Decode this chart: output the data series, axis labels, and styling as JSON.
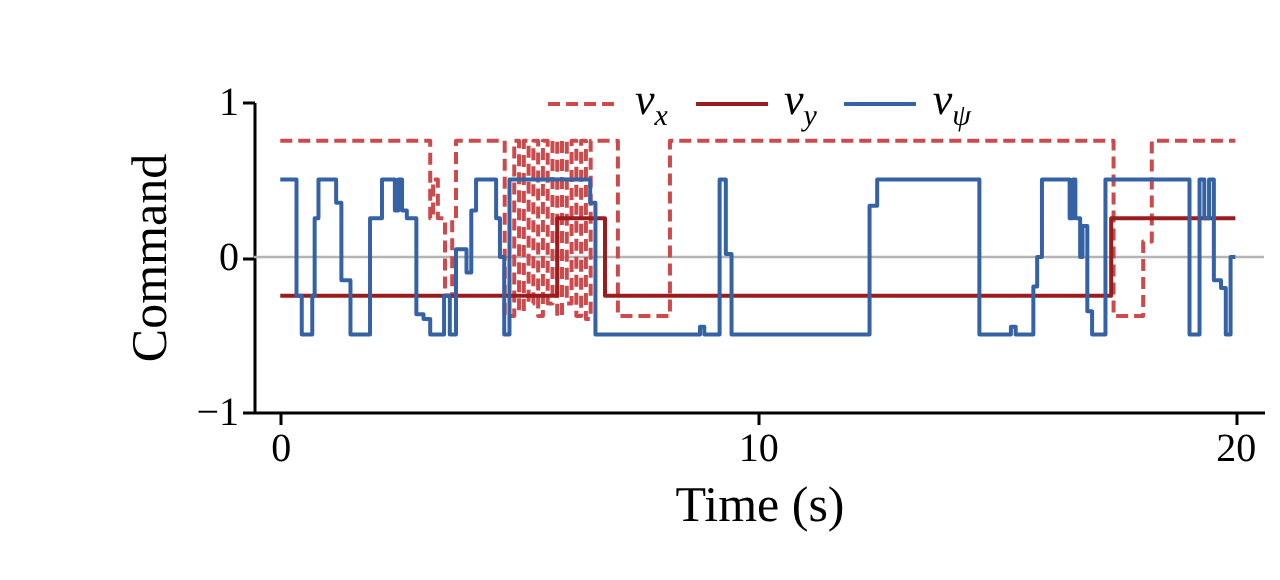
{
  "chart_data": {
    "type": "step",
    "xlabel": "Time (s)",
    "ylabel": "Command",
    "xlim": [
      -0.55,
      20.6
    ],
    "xticks": [
      0,
      10,
      20
    ],
    "ylim": [
      -1,
      1
    ],
    "yticks": [
      -1,
      0,
      1
    ],
    "legend": "top",
    "ref_lines": [
      {
        "axis": "y",
        "value": 0,
        "color": "#b4b4b4"
      }
    ],
    "series": [
      {
        "name": "v$_{x}$",
        "color": "#cd4a4c",
        "line_style": "dashed",
        "x": [
          0,
          3.14,
          3.2,
          3.3,
          3.45,
          3.6,
          3.68,
          4.7,
          4.9,
          5.0,
          5.1,
          5.2,
          5.3,
          5.4,
          5.5,
          5.6,
          5.7,
          5.8,
          5.9,
          6.0,
          6.1,
          6.2,
          6.3,
          6.4,
          6.5,
          7.07,
          8.16,
          17.45,
          18.07,
          18.25,
          20.0
        ],
        "values": [
          0.75,
          0.25,
          0.5,
          0.25,
          -0.25,
          0.25,
          0.75,
          -0.38,
          0.75,
          -0.35,
          0.75,
          -0.3,
          0.75,
          -0.38,
          0.75,
          -0.3,
          0.75,
          -0.38,
          0.75,
          -0.3,
          0.75,
          -0.38,
          0.75,
          -0.4,
          0.75,
          -0.38,
          0.75,
          -0.38,
          0.1,
          0.75,
          0.75
        ]
      },
      {
        "name": "v$_{y}$",
        "color": "#9a1c1f",
        "line_style": "solid",
        "x": [
          0,
          5.8,
          6.8,
          17.4,
          20.0
        ],
        "values": [
          -0.25,
          0.25,
          -0.25,
          0.25,
          0.25
        ]
      },
      {
        "name": "v$_{ψ}$",
        "color": "#3462a4",
        "line_style": "solid",
        "x": [
          0,
          0.34,
          0.45,
          0.67,
          0.72,
          0.8,
          1.17,
          1.28,
          1.47,
          1.88,
          2.13,
          2.4,
          2.47,
          2.55,
          2.65,
          2.85,
          3.0,
          3.14,
          3.43,
          3.55,
          3.68,
          3.9,
          4.0,
          4.1,
          4.52,
          4.6,
          4.69,
          4.8,
          6.49,
          6.6,
          8.79,
          8.88,
          9.2,
          9.33,
          9.45,
          12.34,
          12.5,
          14.64,
          15.3,
          15.4,
          15.77,
          15.85,
          15.95,
          16.53,
          16.6,
          16.65,
          16.75,
          16.8,
          16.9,
          17.0,
          17.28,
          19.04,
          19.25,
          19.35,
          19.45,
          19.55,
          19.7,
          19.8,
          19.9,
          20.0
        ],
        "values": [
          0.5,
          -0.25,
          -0.5,
          -0.25,
          0.25,
          0.5,
          0.35,
          -0.15,
          -0.5,
          0.25,
          0.5,
          0.3,
          0.5,
          0.3,
          0.25,
          -0.37,
          -0.4,
          -0.5,
          -0.25,
          -0.5,
          0.05,
          -0.1,
          0.3,
          0.5,
          0.25,
          0.0,
          -0.5,
          0.5,
          0.35,
          -0.5,
          -0.45,
          -0.5,
          0.5,
          0.02,
          -0.5,
          0.33,
          0.5,
          -0.5,
          -0.45,
          -0.5,
          -0.19,
          0.0,
          0.5,
          0.25,
          0.5,
          0.25,
          0.0,
          0.2,
          -0.35,
          -0.5,
          0.5,
          -0.5,
          0.5,
          0.25,
          0.5,
          -0.15,
          -0.2,
          -0.5,
          0.0,
          0.0
        ]
      }
    ]
  }
}
